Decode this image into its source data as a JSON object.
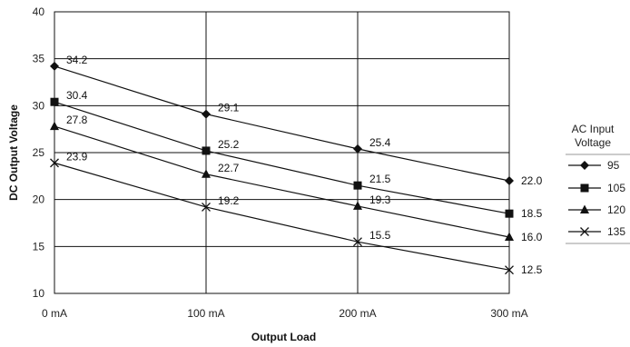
{
  "chart_data": {
    "type": "line",
    "xlabel": "Output Load",
    "ylabel": "DC Output Voltage",
    "categories": [
      "0 mA",
      "100 mA",
      "200 mA",
      "300 mA"
    ],
    "ylim": [
      10,
      40
    ],
    "yticks": [
      10,
      15,
      20,
      25,
      30,
      35,
      40
    ],
    "grid": true,
    "legend": {
      "title_line1": "AC Input",
      "title_line2": "Voltage",
      "placement": "right"
    },
    "series": [
      {
        "name": "95",
        "marker": "diamond",
        "values": [
          34.2,
          29.1,
          25.4,
          22.0
        ],
        "labels": [
          "34.2",
          "29.1",
          "25.4",
          "22.0"
        ]
      },
      {
        "name": "105",
        "marker": "square",
        "values": [
          30.4,
          25.2,
          21.5,
          18.5
        ],
        "labels": [
          "30.4",
          "25.2",
          "21.5",
          "18.5"
        ]
      },
      {
        "name": "120",
        "marker": "triangle",
        "values": [
          27.8,
          22.7,
          19.3,
          16.0
        ],
        "labels": [
          "27.8",
          "22.7",
          "19.3",
          "16.0"
        ]
      },
      {
        "name": "135",
        "marker": "x",
        "values": [
          23.9,
          19.2,
          15.5,
          12.5
        ],
        "labels": [
          "23.9",
          "19.2",
          "15.5",
          "12.5"
        ]
      }
    ],
    "colors": {
      "line": "#111111",
      "grid": "#111111",
      "background": "#ffffff"
    }
  }
}
